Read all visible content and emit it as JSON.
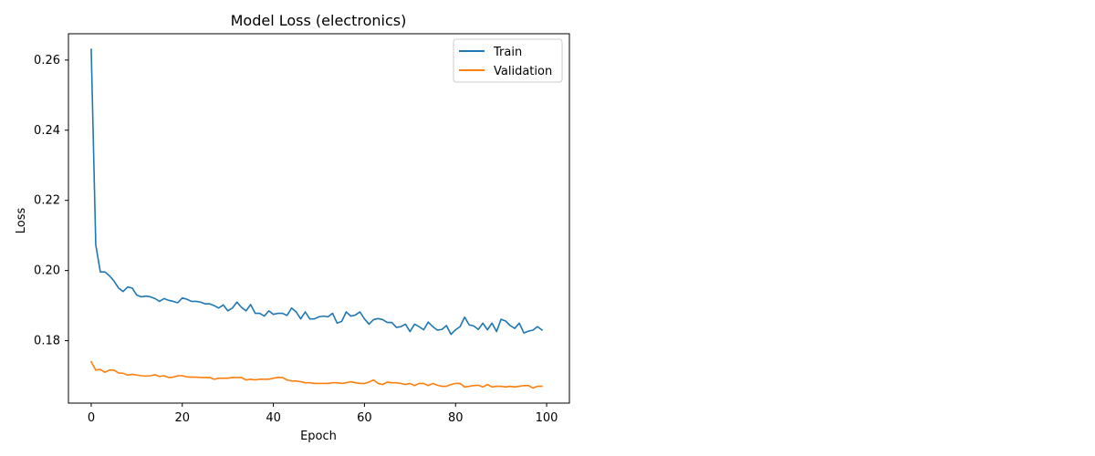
{
  "chart_data": {
    "type": "line",
    "title": "Model Loss (electronics)",
    "xlabel": "Epoch",
    "ylabel": "Loss",
    "xlim": [
      -5,
      105
    ],
    "ylim": [
      0.1622,
      0.2675
    ],
    "xticks": [
      0,
      20,
      40,
      60,
      80,
      100
    ],
    "yticks": [
      0.18,
      0.2,
      0.22,
      0.24,
      0.26
    ],
    "ytick_labels": [
      "0.18",
      "0.20",
      "0.22",
      "0.24",
      "0.26"
    ],
    "grid": false,
    "legend_position": "top-right",
    "series": [
      {
        "name": "Train",
        "color": "#1f77b4",
        "x": [
          0,
          1,
          2,
          3,
          4,
          5,
          6,
          7,
          8,
          9,
          10,
          11,
          12,
          13,
          14,
          15,
          16,
          17,
          18,
          19,
          20,
          21,
          22,
          23,
          24,
          25,
          26,
          27,
          28,
          29,
          30,
          31,
          32,
          33,
          34,
          35,
          36,
          37,
          38,
          39,
          40,
          41,
          42,
          43,
          44,
          45,
          46,
          47,
          48,
          49,
          50,
          51,
          52,
          53,
          54,
          55,
          56,
          57,
          58,
          59,
          60,
          61,
          62,
          63,
          64,
          65,
          66,
          67,
          68,
          69,
          70,
          71,
          72,
          73,
          74,
          75,
          76,
          77,
          78,
          79,
          80,
          81,
          82,
          83,
          84,
          85,
          86,
          87,
          88,
          89,
          90,
          91,
          92,
          93,
          94,
          95,
          96,
          97,
          98,
          99
        ],
        "values": [
          0.2631,
          0.2073,
          0.1996,
          0.1996,
          0.1985,
          0.197,
          0.195,
          0.194,
          0.1953,
          0.195,
          0.193,
          0.1925,
          0.1927,
          0.1925,
          0.192,
          0.1912,
          0.192,
          0.1915,
          0.1912,
          0.1908,
          0.1922,
          0.1918,
          0.1912,
          0.1912,
          0.191,
          0.1905,
          0.1905,
          0.19,
          0.1893,
          0.1902,
          0.1885,
          0.1893,
          0.191,
          0.1895,
          0.1885,
          0.1903,
          0.1878,
          0.1878,
          0.187,
          0.1885,
          0.1875,
          0.1878,
          0.1878,
          0.1872,
          0.1893,
          0.1882,
          0.1862,
          0.1882,
          0.1862,
          0.1862,
          0.1868,
          0.187,
          0.1868,
          0.1878,
          0.185,
          0.1855,
          0.1882,
          0.187,
          0.1873,
          0.1882,
          0.1862,
          0.1847,
          0.186,
          0.1863,
          0.186,
          0.1852,
          0.1852,
          0.1838,
          0.184,
          0.1847,
          0.1826,
          0.1847,
          0.184,
          0.1831,
          0.1853,
          0.184,
          0.183,
          0.1832,
          0.1843,
          0.1818,
          0.1831,
          0.184,
          0.1867,
          0.1845,
          0.1842,
          0.1832,
          0.185,
          0.1831,
          0.185,
          0.1826,
          0.1861,
          0.1856,
          0.1843,
          0.1835,
          0.185,
          0.1822,
          0.1827,
          0.183,
          0.184,
          0.183
        ]
      },
      {
        "name": "Validation",
        "color": "#ff7f0e",
        "x": [
          0,
          1,
          2,
          3,
          4,
          5,
          6,
          7,
          8,
          9,
          10,
          11,
          12,
          13,
          14,
          15,
          16,
          17,
          18,
          19,
          20,
          21,
          22,
          23,
          24,
          25,
          26,
          27,
          28,
          29,
          30,
          31,
          32,
          33,
          34,
          35,
          36,
          37,
          38,
          39,
          40,
          41,
          42,
          43,
          44,
          45,
          46,
          47,
          48,
          49,
          50,
          51,
          52,
          53,
          54,
          55,
          56,
          57,
          58,
          59,
          60,
          61,
          62,
          63,
          64,
          65,
          66,
          67,
          68,
          69,
          70,
          71,
          72,
          73,
          74,
          75,
          76,
          77,
          78,
          79,
          80,
          81,
          82,
          83,
          84,
          85,
          86,
          87,
          88,
          89,
          90,
          91,
          92,
          93,
          94,
          95,
          96,
          97,
          98,
          99
        ],
        "values": [
          0.174,
          0.1716,
          0.1718,
          0.171,
          0.1716,
          0.1716,
          0.1708,
          0.1707,
          0.1702,
          0.1704,
          0.1702,
          0.17,
          0.1699,
          0.17,
          0.1703,
          0.1698,
          0.17,
          0.1695,
          0.1696,
          0.17,
          0.17,
          0.1697,
          0.1696,
          0.1696,
          0.1695,
          0.1695,
          0.1695,
          0.169,
          0.1693,
          0.1693,
          0.1693,
          0.1695,
          0.1695,
          0.1695,
          0.1688,
          0.169,
          0.1688,
          0.169,
          0.169,
          0.169,
          0.1693,
          0.1695,
          0.1695,
          0.1688,
          0.1685,
          0.1685,
          0.1683,
          0.168,
          0.168,
          0.1678,
          0.1678,
          0.1678,
          0.1678,
          0.168,
          0.168,
          0.1678,
          0.168,
          0.1683,
          0.168,
          0.1678,
          0.1678,
          0.1682,
          0.1688,
          0.1678,
          0.1675,
          0.1682,
          0.168,
          0.168,
          0.1678,
          0.1675,
          0.1678,
          0.1672,
          0.1678,
          0.1678,
          0.1672,
          0.1678,
          0.1673,
          0.167,
          0.167,
          0.1675,
          0.1678,
          0.1678,
          0.1668,
          0.167,
          0.1672,
          0.1673,
          0.1668,
          0.1675,
          0.1668,
          0.167,
          0.167,
          0.1668,
          0.167,
          0.1668,
          0.167,
          0.1672,
          0.1672,
          0.1665,
          0.167,
          0.167
        ]
      }
    ]
  }
}
